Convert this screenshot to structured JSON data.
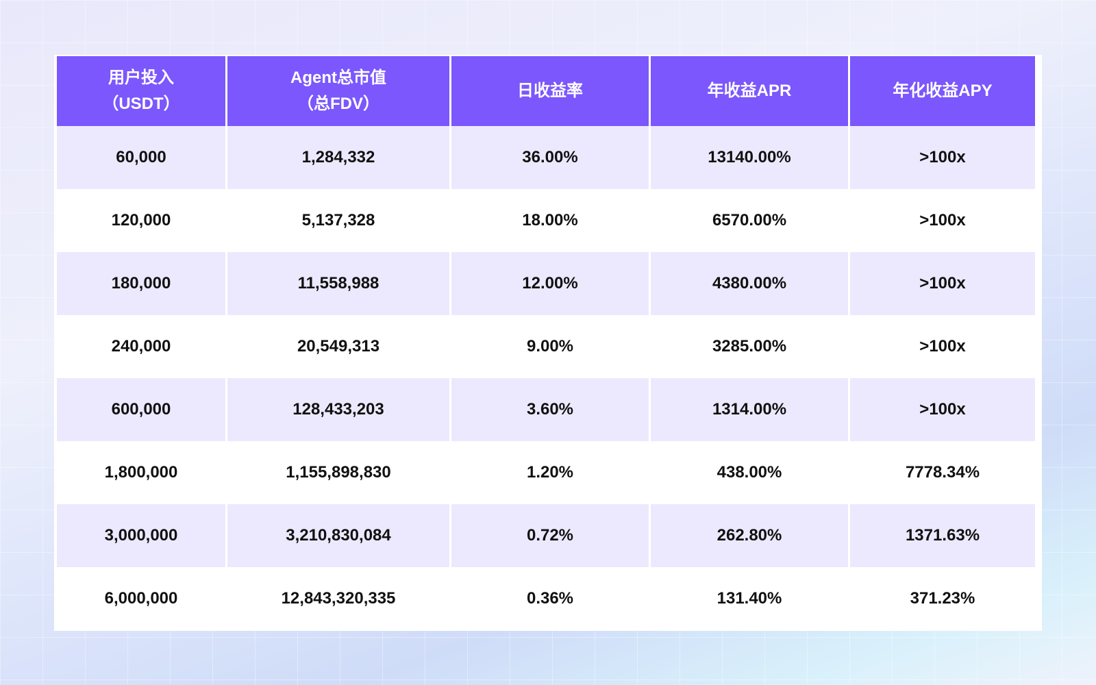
{
  "table": {
    "headers": [
      {
        "line1": "用户投入",
        "line2": "（USDT）"
      },
      {
        "line1": "Agent总市值",
        "line2": "（总FDV）"
      },
      {
        "line1": "日收益率",
        "line2": ""
      },
      {
        "line1": "年收益APR",
        "line2": ""
      },
      {
        "line1": "年化收益APY",
        "line2": ""
      }
    ],
    "rows": [
      [
        "60,000",
        "1,284,332",
        "36.00%",
        "13140.00%",
        ">100x"
      ],
      [
        "120,000",
        "5,137,328",
        "18.00%",
        "6570.00%",
        ">100x"
      ],
      [
        "180,000",
        "11,558,988",
        "12.00%",
        "4380.00%",
        ">100x"
      ],
      [
        "240,000",
        "20,549,313",
        "9.00%",
        "3285.00%",
        ">100x"
      ],
      [
        "600,000",
        "128,433,203",
        "3.60%",
        "1314.00%",
        ">100x"
      ],
      [
        "1,800,000",
        "1,155,898,830",
        "1.20%",
        "438.00%",
        "7778.34%"
      ],
      [
        "3,000,000",
        "3,210,830,084",
        "0.72%",
        "262.80%",
        "1371.63%"
      ],
      [
        "6,000,000",
        "12,843,320,335",
        "0.36%",
        "131.40%",
        "371.23%"
      ]
    ]
  },
  "colors": {
    "header": "#7B57FD",
    "stripe": "#ECE9FE"
  }
}
